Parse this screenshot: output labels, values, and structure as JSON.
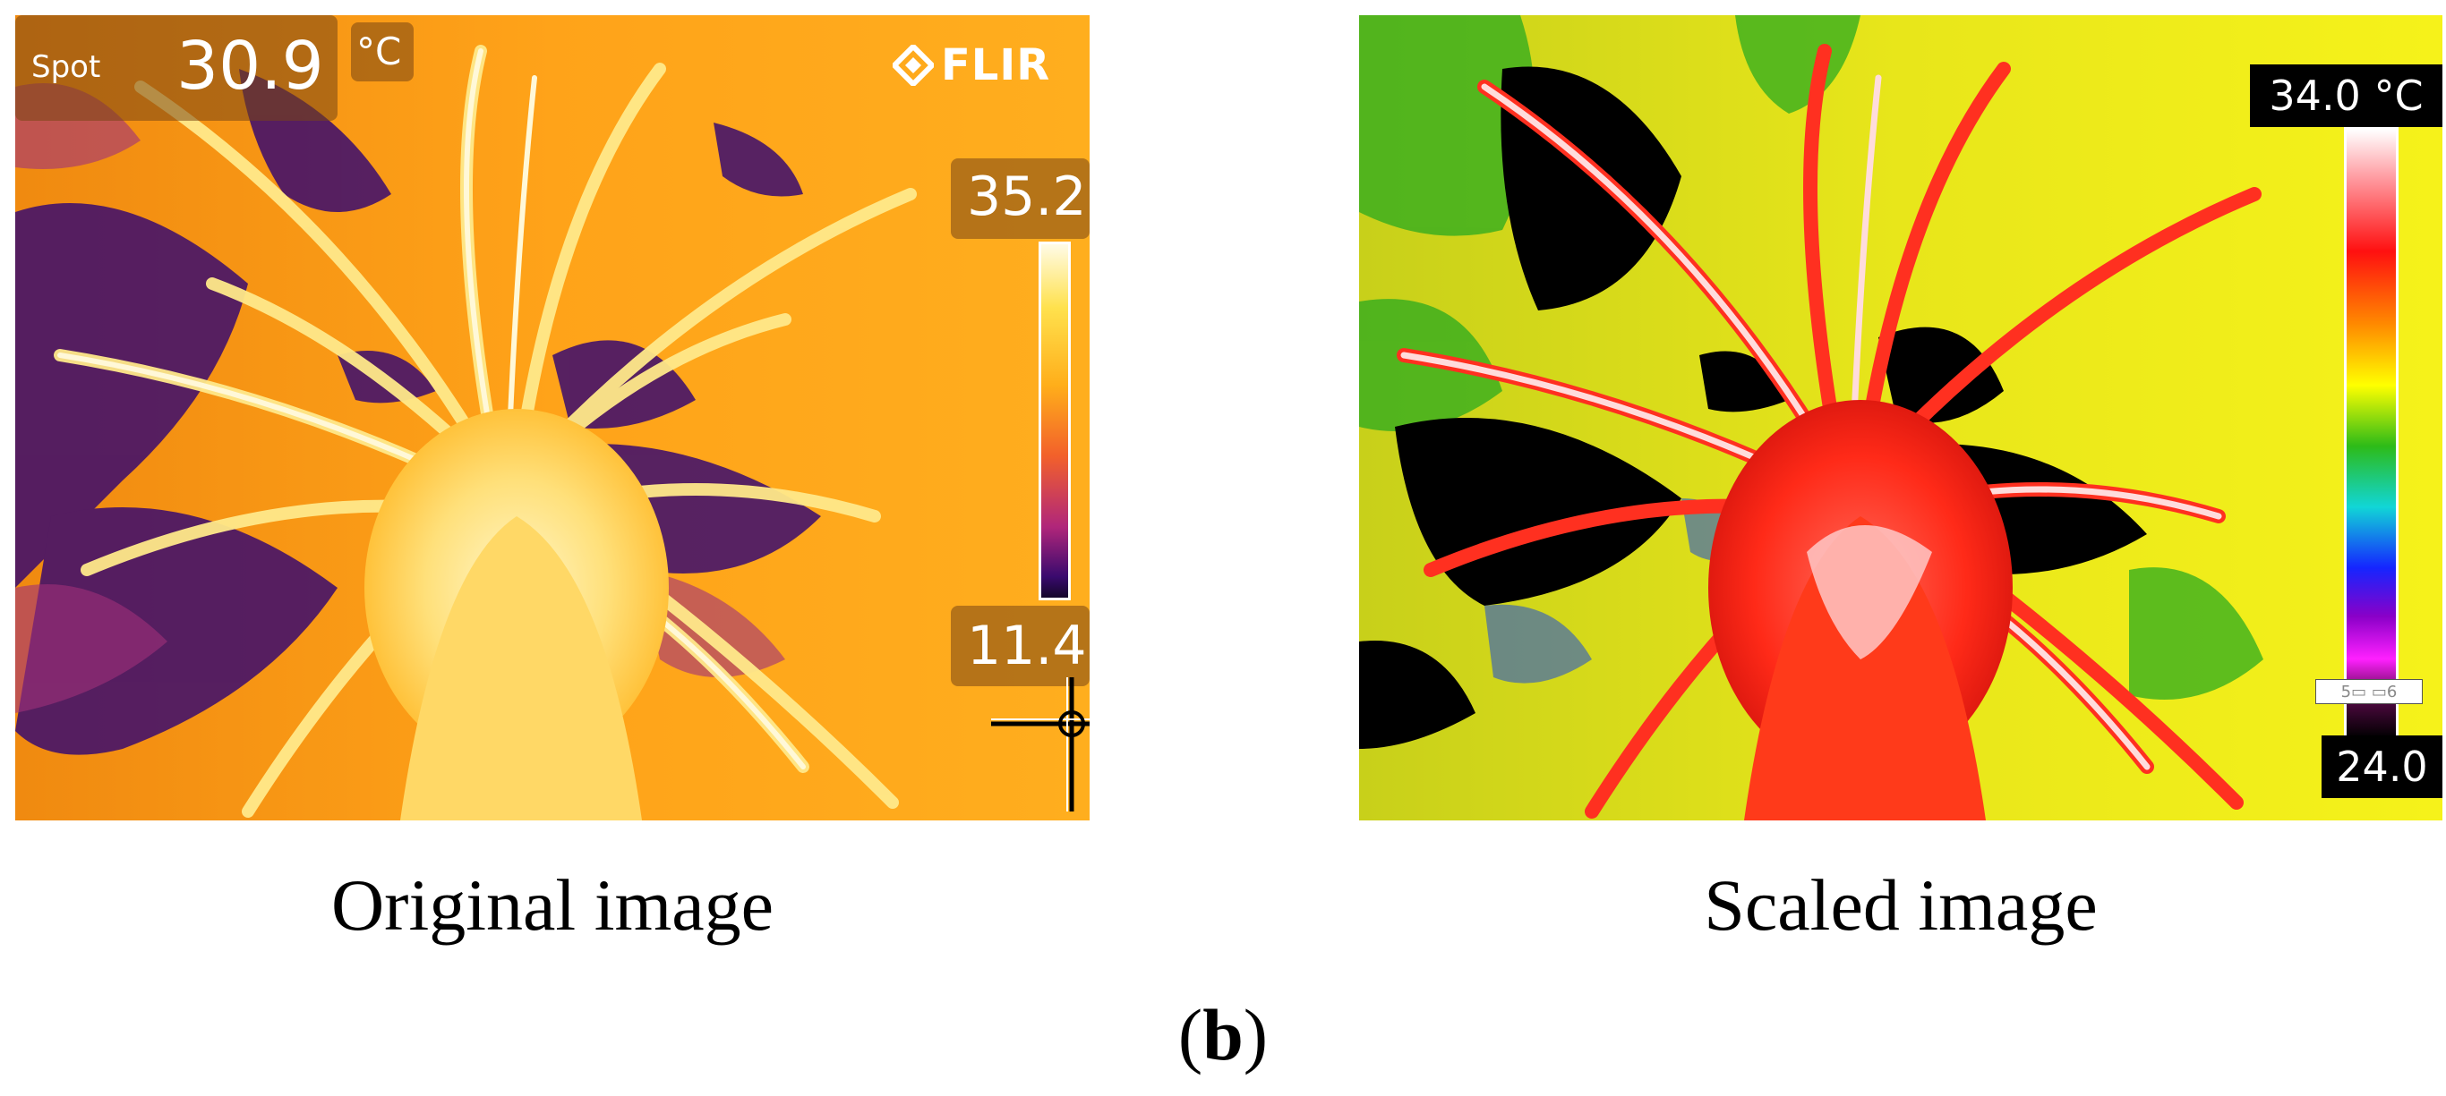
{
  "original_panel": {
    "spot_label": "Spot",
    "spot_value": "30.9",
    "spot_unit": "°C",
    "brand": "FLIR",
    "scale_max": "35.2",
    "scale_min": "11.4",
    "caption": "Original image"
  },
  "scaled_panel": {
    "scale_max": "34.0 °C",
    "scale_mid_tag": "5▭ ▭6",
    "scale_min": "24.0",
    "caption": "Scaled image"
  },
  "figure": {
    "open_paren": "(",
    "label": "b",
    "close_paren": ")"
  },
  "colors": {
    "ironbow_background": "#ffa319",
    "ironbow_dark": "#3a0a6e",
    "ironbow_hot": "#fff4c2",
    "rainbow_black": "#000000",
    "rainbow_red": "#ff1a1a",
    "rainbow_yellow": "#f2f21a",
    "rainbow_green": "#1fa81f",
    "rainbow_white": "#ffe8e8"
  }
}
